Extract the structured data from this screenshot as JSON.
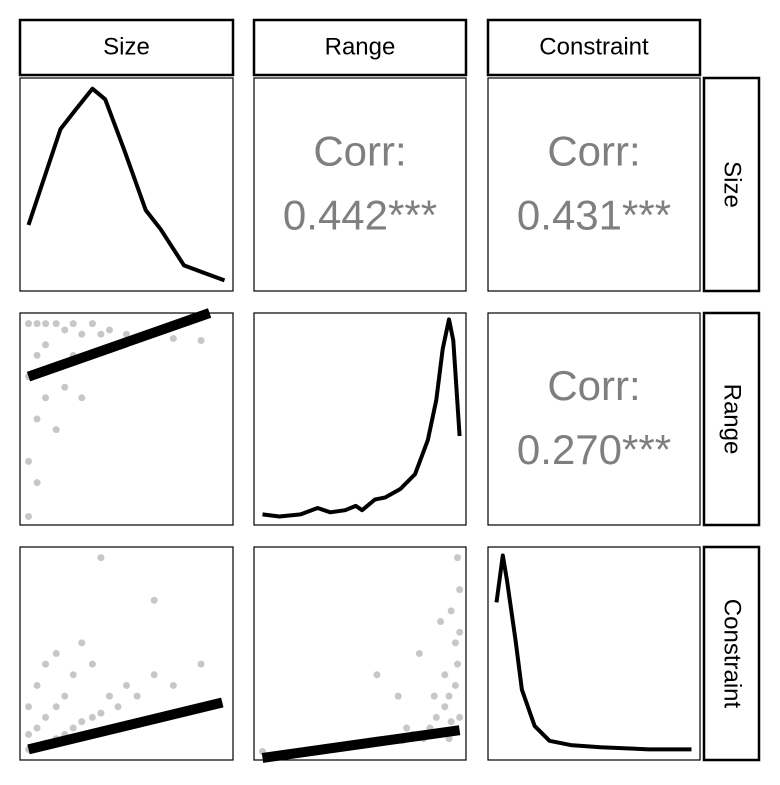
{
  "chart_data": {
    "type": "pairs",
    "variables": [
      "Size",
      "Range",
      "Constraint"
    ],
    "xlim": [
      0,
      1
    ],
    "ylim": [
      0,
      1
    ],
    "line_color": "#000000",
    "point_color": "#000000",
    "point_alpha": 0.22,
    "corr_color": "#7f7f7f",
    "diagonal": [
      {
        "x": [
          0.04,
          0.19,
          0.26,
          0.34,
          0.4,
          0.49,
          0.59,
          0.66,
          0.77,
          0.85,
          0.96
        ],
        "y": [
          0.31,
          0.76,
          0.85,
          0.95,
          0.9,
          0.66,
          0.38,
          0.29,
          0.12,
          0.09,
          0.05
        ]
      },
      {
        "x": [
          0.04,
          0.12,
          0.22,
          0.3,
          0.36,
          0.43,
          0.48,
          0.51,
          0.57,
          0.62,
          0.69,
          0.76,
          0.82,
          0.86,
          0.89,
          0.92,
          0.94,
          0.97
        ],
        "y": [
          0.05,
          0.04,
          0.05,
          0.08,
          0.06,
          0.07,
          0.09,
          0.07,
          0.12,
          0.13,
          0.17,
          0.24,
          0.4,
          0.59,
          0.83,
          0.97,
          0.87,
          0.42
        ]
      },
      {
        "x": [
          0.04,
          0.07,
          0.09,
          0.13,
          0.16,
          0.22,
          0.29,
          0.39,
          0.53,
          0.76,
          0.96
        ],
        "y": [
          0.74,
          0.96,
          0.84,
          0.56,
          0.33,
          0.16,
          0.09,
          0.07,
          0.06,
          0.05,
          0.05
        ]
      }
    ],
    "upper": [
      {
        "title": "Corr:",
        "value_label": "0.442***"
      },
      {
        "title": "Corr:",
        "value_label": "0.431***"
      },
      {
        "title": "Corr:",
        "value_label": "0.270***"
      }
    ],
    "lower": [
      {
        "x": [
          0.04,
          0.04,
          0.04,
          0.08,
          0.08,
          0.08,
          0.12,
          0.12,
          0.12,
          0.17,
          0.17,
          0.17,
          0.21,
          0.21,
          0.25,
          0.25,
          0.29,
          0.29,
          0.34,
          0.34,
          0.38,
          0.42,
          0.46,
          0.5,
          0.55,
          0.63,
          0.72,
          0.85,
          0.08,
          0.04
        ],
        "y": [
          0.95,
          0.7,
          0.3,
          0.95,
          0.8,
          0.5,
          0.95,
          0.85,
          0.6,
          0.95,
          0.75,
          0.45,
          0.92,
          0.65,
          0.95,
          0.8,
          0.9,
          0.6,
          0.95,
          0.8,
          0.9,
          0.92,
          0.85,
          0.9,
          0.88,
          0.9,
          0.88,
          0.87,
          0.2,
          0.04
        ],
        "fit": {
          "x": [
            0.04,
            0.89
          ],
          "y": [
            0.7,
            1.0
          ]
        }
      },
      {
        "x": [
          0.04,
          0.04,
          0.04,
          0.08,
          0.08,
          0.08,
          0.12,
          0.12,
          0.12,
          0.17,
          0.17,
          0.17,
          0.21,
          0.21,
          0.25,
          0.25,
          0.29,
          0.29,
          0.34,
          0.34,
          0.38,
          0.42,
          0.46,
          0.5,
          0.55,
          0.63,
          0.72,
          0.85,
          0.63,
          0.38
        ],
        "y": [
          0.05,
          0.12,
          0.25,
          0.06,
          0.15,
          0.35,
          0.08,
          0.2,
          0.45,
          0.1,
          0.25,
          0.5,
          0.12,
          0.3,
          0.15,
          0.4,
          0.18,
          0.55,
          0.2,
          0.45,
          0.22,
          0.3,
          0.25,
          0.35,
          0.3,
          0.4,
          0.35,
          0.45,
          0.75,
          0.95
        ],
        "fit": {
          "x": [
            0.04,
            0.95
          ],
          "y": [
            0.05,
            0.27
          ]
        }
      },
      {
        "x": [
          0.04,
          0.3,
          0.45,
          0.55,
          0.62,
          0.7,
          0.75,
          0.8,
          0.83,
          0.86,
          0.88,
          0.9,
          0.92,
          0.93,
          0.95,
          0.96,
          0.97,
          0.9,
          0.85,
          0.95,
          0.97,
          0.78,
          0.68,
          0.93,
          0.96,
          0.88,
          0.97,
          0.72,
          0.58,
          0.92
        ],
        "y": [
          0.04,
          0.05,
          0.06,
          0.08,
          0.1,
          0.09,
          0.12,
          0.1,
          0.15,
          0.2,
          0.12,
          0.25,
          0.3,
          0.18,
          0.35,
          0.45,
          0.6,
          0.4,
          0.3,
          0.55,
          0.2,
          0.5,
          0.3,
          0.7,
          0.95,
          0.65,
          0.8,
          0.15,
          0.4,
          0.1
        ],
        "fit": {
          "x": [
            0.04,
            0.97
          ],
          "y": [
            0.01,
            0.14
          ]
        }
      }
    ]
  }
}
